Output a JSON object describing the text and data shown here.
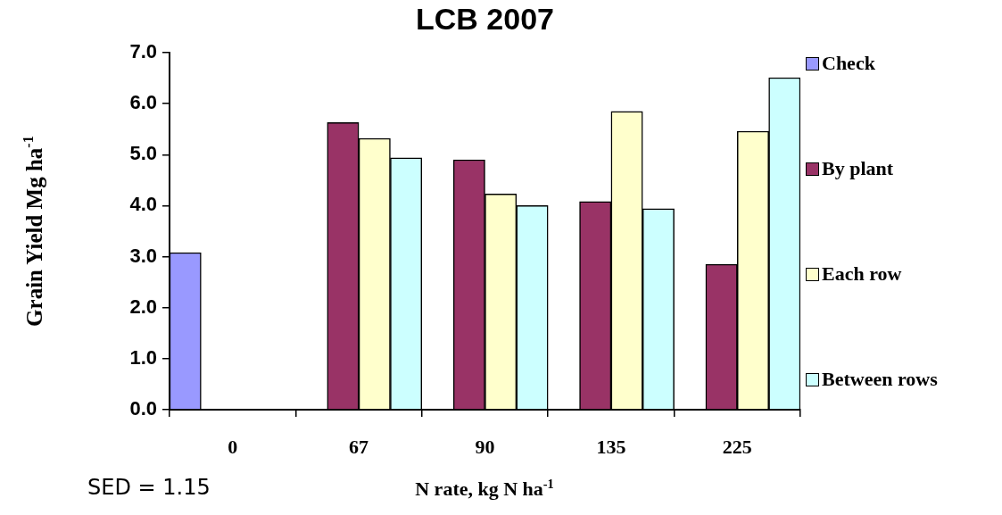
{
  "chart_data": {
    "type": "bar",
    "title": "LCB 2007",
    "xlabel": "N rate, kg N ha$^{-1}$",
    "ylabel": "Grain Yield Mg ha$^{-1}$",
    "categories": [
      "0",
      "67",
      "90",
      "135",
      "225"
    ],
    "series": [
      {
        "name": "Check",
        "color": "#9999ff",
        "values": [
          3.08,
          null,
          null,
          null,
          null
        ]
      },
      {
        "name": "By plant",
        "color": "#993366",
        "values": [
          null,
          5.63,
          4.9,
          4.08,
          2.85
        ]
      },
      {
        "name": "Each row",
        "color": "#ffffcc",
        "values": [
          null,
          5.32,
          4.23,
          5.85,
          5.46
        ]
      },
      {
        "name": "Between rows",
        "color": "#ccffff",
        "values": [
          null,
          4.94,
          4.0,
          3.94,
          6.51
        ]
      }
    ],
    "ylim": [
      0,
      7
    ],
    "yticks": [
      {
        "value": 0,
        "label": "0.0"
      },
      {
        "value": 1,
        "label": "1.0"
      },
      {
        "value": 2,
        "label": "2.0"
      },
      {
        "value": 3,
        "label": "3.0"
      },
      {
        "value": 4,
        "label": "4.0"
      },
      {
        "value": 5,
        "label": "5.0"
      },
      {
        "value": 6,
        "label": "6.0"
      },
      {
        "value": 7,
        "label": "7.0"
      }
    ],
    "grid": false,
    "legend": "right",
    "annotations": [
      "SED = 1.15"
    ]
  }
}
